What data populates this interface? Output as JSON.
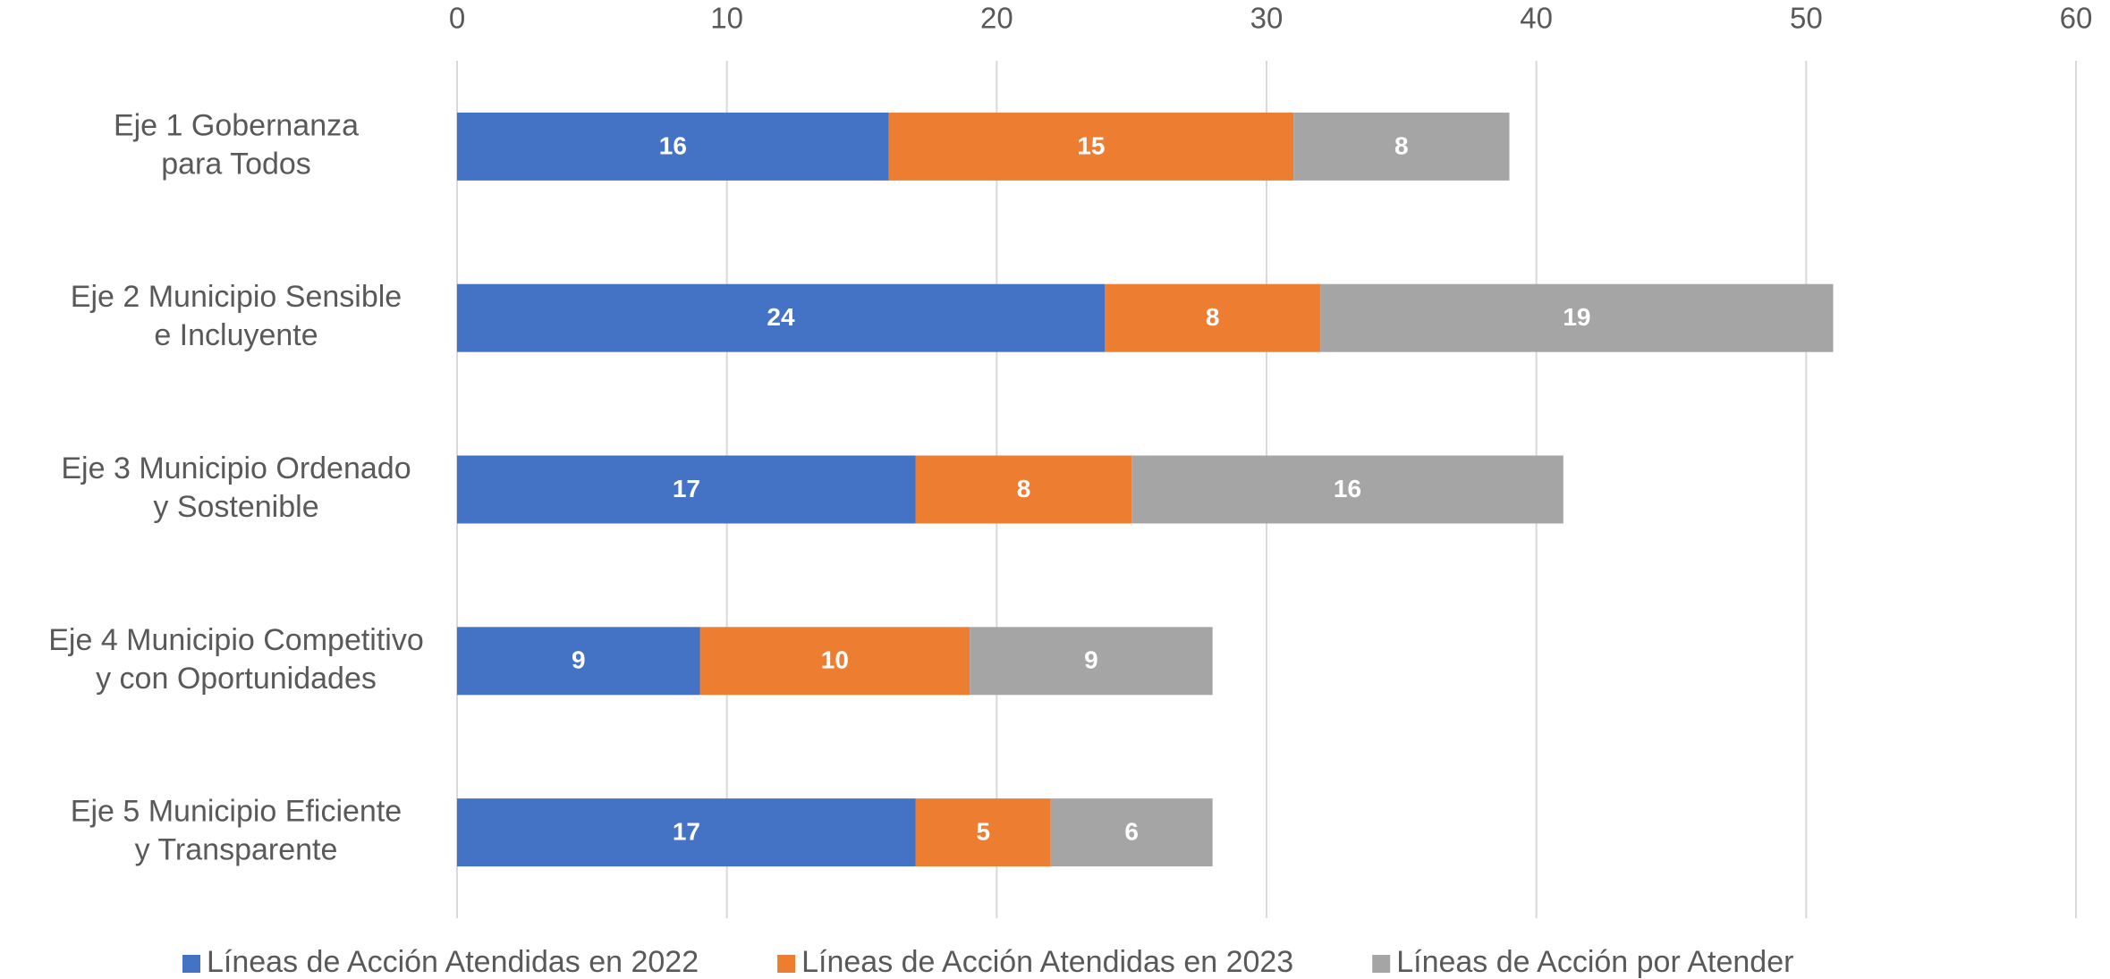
{
  "chart_data": {
    "type": "stacked_bar_horizontal",
    "categories": [
      [
        "Eje 1 Gobernanza",
        "para Todos"
      ],
      [
        "Eje 2 Municipio Sensible",
        "e Incluyente"
      ],
      [
        "Eje 3 Municipio Ordenado",
        "y Sostenible"
      ],
      [
        "Eje 4 Municipio Competitivo",
        "y con Oportunidades"
      ],
      [
        "Eje 5 Municipio Eficiente",
        "y Transparente"
      ]
    ],
    "series": [
      {
        "name": "Líneas de Acción Atendidas en 2022",
        "color": "#4472c4",
        "values": [
          16,
          24,
          17,
          9,
          17
        ]
      },
      {
        "name": "Líneas de Acción Atendidas en 2023",
        "color": "#ed7d31",
        "values": [
          15,
          8,
          8,
          10,
          5
        ]
      },
      {
        "name": "Líneas de Acción por Atender",
        "color": "#a5a5a5",
        "values": [
          8,
          19,
          16,
          9,
          6
        ]
      }
    ],
    "xlim": [
      0,
      60
    ],
    "xticks": [
      0,
      10,
      20,
      30,
      40,
      50,
      60
    ],
    "grid": true,
    "legend": "bottom"
  }
}
